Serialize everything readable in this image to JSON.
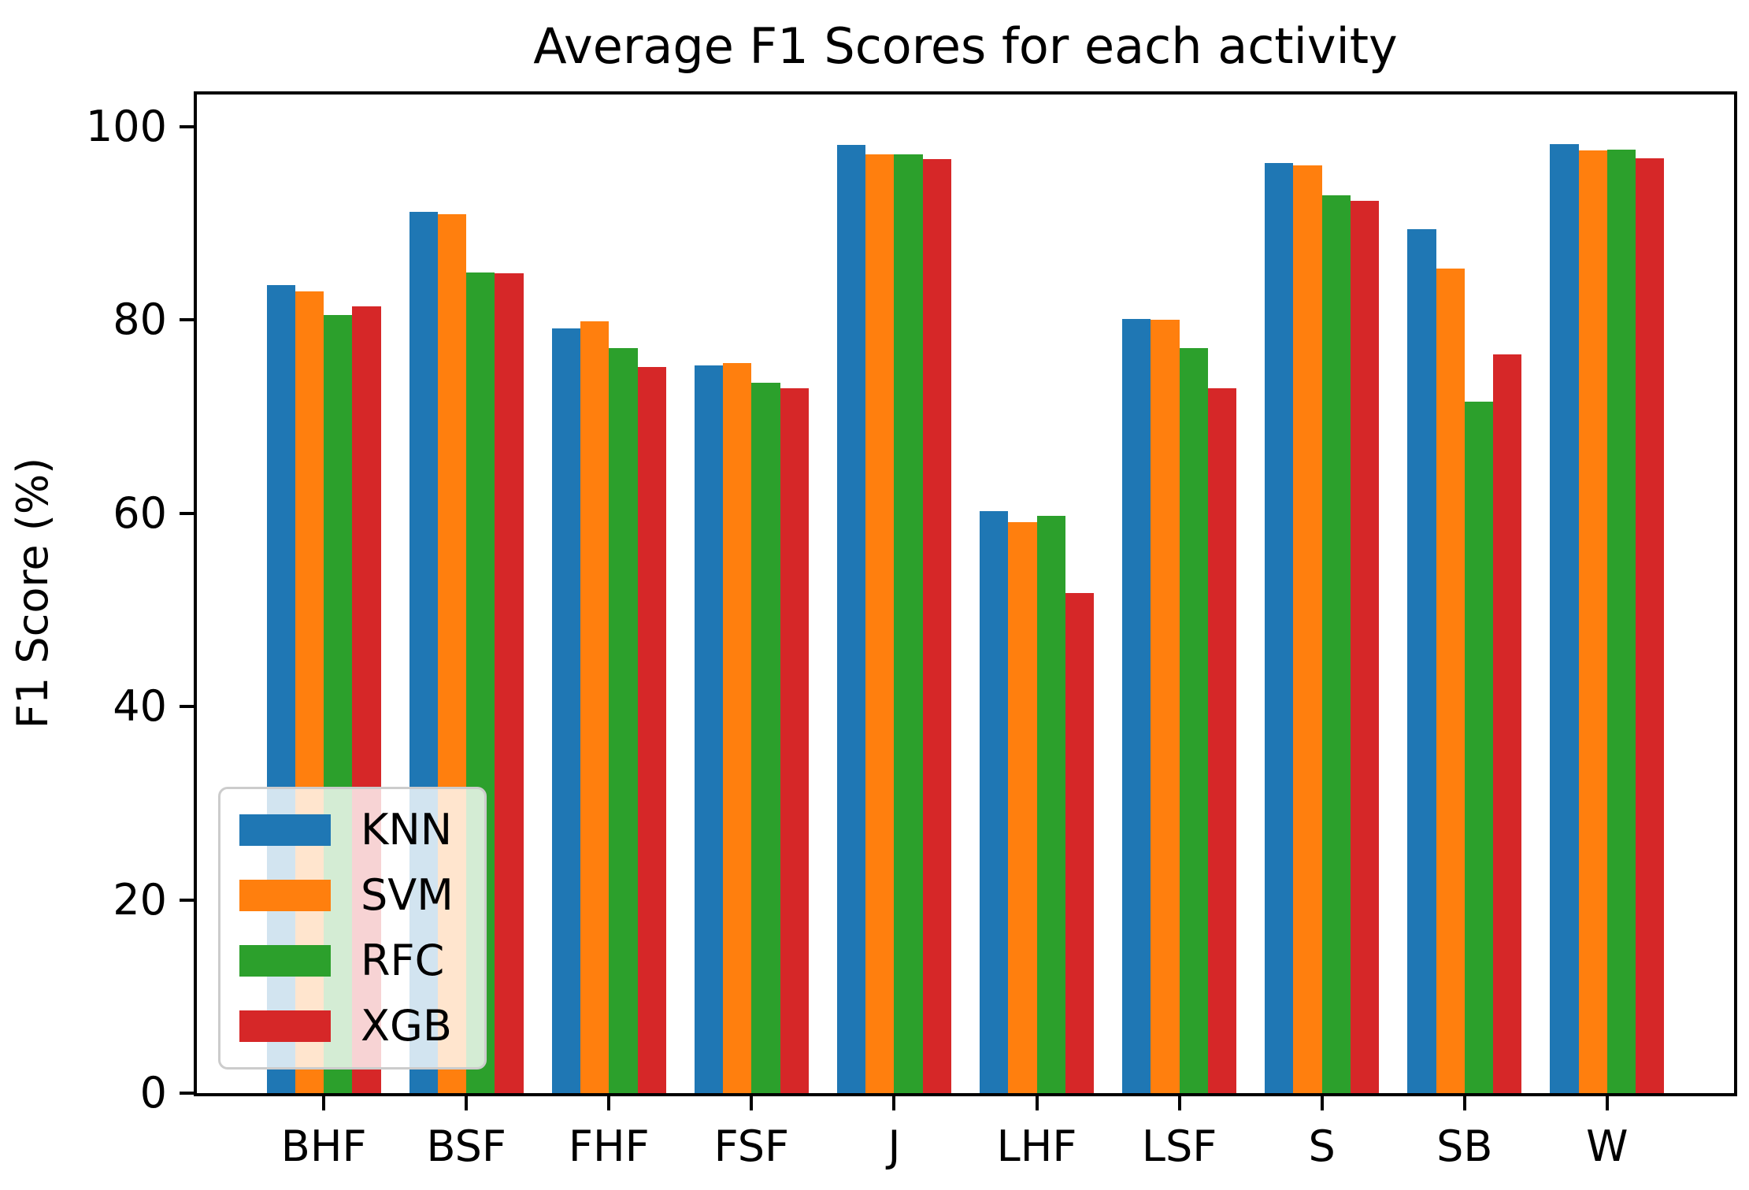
{
  "chart_data": {
    "type": "bar",
    "title": "Average F1 Scores for each activity",
    "xlabel": "",
    "ylabel": "F1 Score (%)",
    "categories": [
      "BHF",
      "BSF",
      "FHF",
      "FSF",
      "J",
      "LHF",
      "LSF",
      "S",
      "SB",
      "W"
    ],
    "series": [
      {
        "name": "KNN",
        "color": "#1f77b4",
        "values": [
          83.6,
          91.2,
          79.1,
          75.3,
          98.1,
          60.2,
          80.1,
          96.2,
          89.4,
          98.2
        ]
      },
      {
        "name": "SVM",
        "color": "#ff7f0e",
        "values": [
          82.9,
          90.9,
          79.8,
          75.5,
          97.1,
          59.1,
          80.0,
          96.0,
          85.3,
          97.5
        ]
      },
      {
        "name": "RFC",
        "color": "#2ca02c",
        "values": [
          80.5,
          84.9,
          77.1,
          73.5,
          97.1,
          59.7,
          77.1,
          92.9,
          71.5,
          97.6
        ]
      },
      {
        "name": "XGB",
        "color": "#d62728",
        "values": [
          81.4,
          84.8,
          75.1,
          72.9,
          96.6,
          51.7,
          72.9,
          92.3,
          76.4,
          96.7
        ]
      }
    ],
    "ylim": [
      0,
      103.3
    ],
    "xlim": [
      -0.89,
      9.89
    ],
    "yticks": [
      0,
      20,
      40,
      60,
      80,
      100
    ],
    "bar_width": 0.2,
    "grid": false,
    "legend_position": "lower left",
    "axis_color": "#000000",
    "legend_border_color": "#cccccc"
  }
}
